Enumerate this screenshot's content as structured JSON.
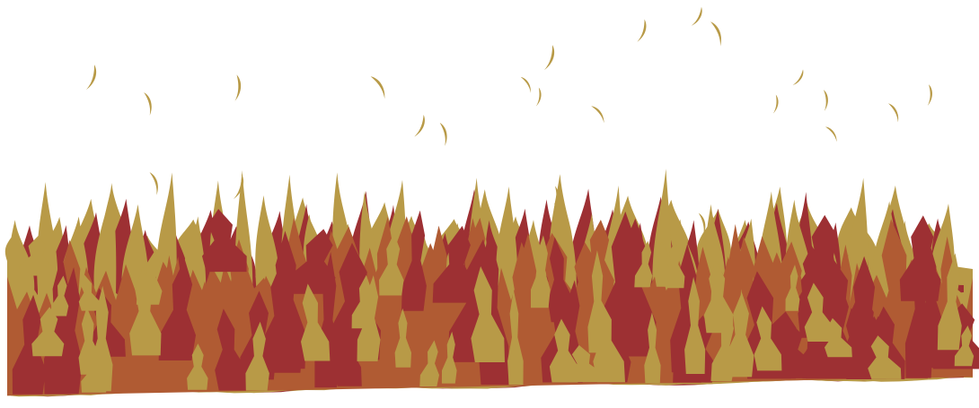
{
  "illustration": {
    "subject": "flames",
    "background_color": "#ffffff",
    "colors": {
      "gold": "#b89a47",
      "orange": "#b05b33",
      "red": "#9d3033"
    }
  }
}
